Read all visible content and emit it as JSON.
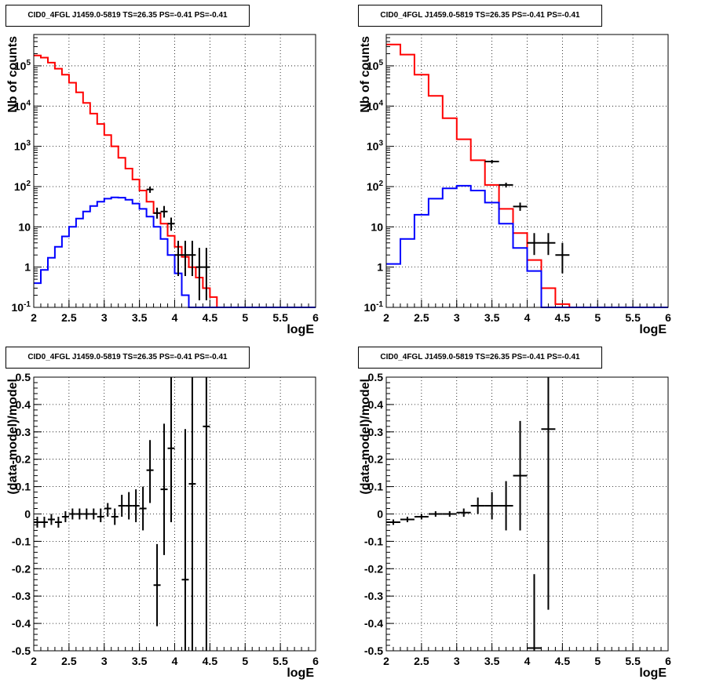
{
  "chart_data": [
    {
      "type": "line",
      "title": "CID0_4FGL J1459.0-5819 TS=26.35 PS=-0.41 PS=-0.41",
      "xlabel": "logE",
      "ylabel": "Nb of counts",
      "xlim": [
        2,
        6
      ],
      "ylim": [
        0.1,
        600000
      ],
      "yscale": "log",
      "grid": true,
      "xticks": [
        "2",
        "2.5",
        "3",
        "3.5",
        "4",
        "4.5",
        "5",
        "5.5",
        "6"
      ],
      "yticks": [
        "10^-1",
        "1",
        "10",
        "10^2",
        "10^3",
        "10^4",
        "10^5"
      ],
      "bins": 40,
      "series": [
        {
          "color": "#ff0000",
          "style": "step",
          "values": [
            180000,
            160000,
            120000,
            85000,
            60000,
            38000,
            22000,
            12000,
            6500,
            3600,
            1900,
            1000,
            520,
            280,
            150,
            80,
            42,
            22,
            12,
            6,
            3.2,
            1.8,
            1.0,
            0.55,
            0.3,
            0.18,
            0.1,
            0.1,
            0.1,
            0.1,
            0.1,
            0.1,
            0.1,
            0.1,
            0.1,
            0.1,
            0.1,
            0.1,
            0.1,
            0.1
          ]
        },
        {
          "color": "#0000ff",
          "style": "step",
          "values": [
            0.4,
            0.85,
            1.7,
            3.2,
            5.8,
            10,
            16,
            24,
            33,
            42,
            50,
            54,
            53,
            47,
            38,
            28,
            18,
            10,
            5,
            2,
            0.7,
            0.2,
            0.1,
            0.1,
            0.1,
            0.1,
            0.1,
            0.1,
            0.1,
            0.1,
            0.1,
            0.1,
            0.1,
            0.1,
            0.1,
            0.1,
            0.1,
            0.1,
            0.1,
            0.1
          ]
        }
      ],
      "points": [
        {
          "x": 3.65,
          "y": 85,
          "ylo": 70,
          "yhi": 100
        },
        {
          "x": 3.75,
          "y": 22,
          "ylo": 16,
          "yhi": 30
        },
        {
          "x": 3.85,
          "y": 24,
          "ylo": 17,
          "yhi": 33
        },
        {
          "x": 3.95,
          "y": 12,
          "ylo": 8,
          "yhi": 17
        },
        {
          "x": 4.05,
          "y": 2,
          "ylo": 0.6,
          "yhi": 4.5
        },
        {
          "x": 4.15,
          "y": 2,
          "ylo": 0.6,
          "yhi": 4.5
        },
        {
          "x": 4.25,
          "y": 2,
          "ylo": 0.6,
          "yhi": 4.5
        },
        {
          "x": 4.35,
          "y": 1,
          "ylo": 0.15,
          "yhi": 3
        },
        {
          "x": 4.45,
          "y": 1,
          "ylo": 0.15,
          "yhi": 3
        }
      ]
    },
    {
      "type": "line",
      "title": "CID0_4FGL J1459.0-5819 TS=26.35 PS=-0.41 PS=-0.41",
      "xlabel": "logE",
      "ylabel": "Nb of counts",
      "xlim": [
        2,
        6
      ],
      "ylim": [
        0.1,
        600000
      ],
      "yscale": "log",
      "grid": true,
      "xticks": [
        "2",
        "2.5",
        "3",
        "3.5",
        "4",
        "4.5",
        "5",
        "5.5",
        "6"
      ],
      "yticks": [
        "10^-1",
        "1",
        "10",
        "10^2",
        "10^3",
        "10^4",
        "10^5"
      ],
      "bins": 20,
      "series": [
        {
          "color": "#ff0000",
          "style": "step",
          "values": [
            340000,
            190000,
            60000,
            18000,
            5000,
            1500,
            450,
            110,
            28,
            7,
            1.5,
            0.3,
            0.12,
            0.1,
            0.1,
            0.1,
            0.1,
            0.1,
            0.1,
            0.1
          ]
        },
        {
          "color": "#0000ff",
          "style": "step",
          "values": [
            1.2,
            5,
            20,
            50,
            90,
            105,
            80,
            40,
            12,
            3,
            0.8,
            0.1,
            0.1,
            0.1,
            0.1,
            0.1,
            0.1,
            0.1,
            0.1,
            0.1
          ]
        }
      ],
      "points": [
        {
          "x": 3.5,
          "y": 420,
          "ylo": 380,
          "yhi": 460
        },
        {
          "x": 3.7,
          "y": 110,
          "ylo": 95,
          "yhi": 125
        },
        {
          "x": 3.9,
          "y": 32,
          "ylo": 25,
          "yhi": 40
        },
        {
          "x": 4.1,
          "y": 4,
          "ylo": 2,
          "yhi": 7
        },
        {
          "x": 4.3,
          "y": 4,
          "ylo": 2,
          "yhi": 7
        },
        {
          "x": 4.5,
          "y": 2,
          "ylo": 0.7,
          "yhi": 4
        }
      ]
    },
    {
      "type": "scatter",
      "title": "CID0_4FGL J1459.0-5819 TS=26.35 PS=-0.41 PS=-0.41",
      "xlabel": "logE",
      "ylabel": "(data-model)/model",
      "xlim": [
        2,
        6
      ],
      "ylim": [
        -0.5,
        0.5
      ],
      "grid": true,
      "xticks": [
        "2",
        "2.5",
        "3",
        "3.5",
        "4",
        "4.5",
        "5",
        "5.5",
        "6"
      ],
      "yticks": [
        "-0.5",
        "-0.4",
        "-0.3",
        "-0.2",
        "-0.1",
        "0",
        "0.1",
        "0.2",
        "0.3",
        "0.4",
        "0.5"
      ],
      "binwidth": 0.1,
      "points": [
        {
          "x": 2.05,
          "y": -0.03,
          "ylo": -0.05,
          "yhi": -0.01
        },
        {
          "x": 2.15,
          "y": -0.03,
          "ylo": -0.05,
          "yhi": -0.01
        },
        {
          "x": 2.25,
          "y": -0.02,
          "ylo": -0.04,
          "yhi": 0.0
        },
        {
          "x": 2.35,
          "y": -0.03,
          "ylo": -0.05,
          "yhi": -0.01
        },
        {
          "x": 2.45,
          "y": -0.01,
          "ylo": -0.03,
          "yhi": 0.01
        },
        {
          "x": 2.55,
          "y": 0.0,
          "ylo": -0.02,
          "yhi": 0.02
        },
        {
          "x": 2.65,
          "y": 0.0,
          "ylo": -0.02,
          "yhi": 0.02
        },
        {
          "x": 2.75,
          "y": 0.0,
          "ylo": -0.02,
          "yhi": 0.02
        },
        {
          "x": 2.85,
          "y": 0.0,
          "ylo": -0.02,
          "yhi": 0.02
        },
        {
          "x": 2.95,
          "y": -0.01,
          "ylo": -0.03,
          "yhi": 0.02
        },
        {
          "x": 3.05,
          "y": 0.02,
          "ylo": -0.01,
          "yhi": 0.04
        },
        {
          "x": 3.15,
          "y": -0.01,
          "ylo": -0.04,
          "yhi": 0.02
        },
        {
          "x": 3.25,
          "y": 0.03,
          "ylo": -0.01,
          "yhi": 0.07
        },
        {
          "x": 3.35,
          "y": 0.03,
          "ylo": -0.02,
          "yhi": 0.08
        },
        {
          "x": 3.45,
          "y": 0.03,
          "ylo": -0.03,
          "yhi": 0.09
        },
        {
          "x": 3.55,
          "y": 0.02,
          "ylo": -0.06,
          "yhi": 0.1
        },
        {
          "x": 3.65,
          "y": 0.16,
          "ylo": 0.04,
          "yhi": 0.27
        },
        {
          "x": 3.75,
          "y": -0.26,
          "ylo": -0.41,
          "yhi": -0.11
        },
        {
          "x": 3.85,
          "y": 0.09,
          "ylo": -0.15,
          "yhi": 0.33
        },
        {
          "x": 3.95,
          "y": 0.24,
          "ylo": -0.03,
          "yhi": 0.5
        },
        {
          "x": 4.15,
          "y": -0.24,
          "ylo": -0.5,
          "yhi": 0.31
        },
        {
          "x": 4.25,
          "y": 0.11,
          "ylo": -0.5,
          "yhi": 0.5
        },
        {
          "x": 4.45,
          "y": 0.32,
          "ylo": -0.5,
          "yhi": 0.5
        }
      ]
    },
    {
      "type": "scatter",
      "title": "CID0_4FGL J1459.0-5819 TS=26.35 PS=-0.41 PS=-0.41",
      "xlabel": "logE",
      "ylabel": "(data-model)/model",
      "xlim": [
        2,
        6
      ],
      "ylim": [
        -0.5,
        0.5
      ],
      "grid": true,
      "xticks": [
        "2",
        "2.5",
        "3",
        "3.5",
        "4",
        "4.5",
        "5",
        "5.5",
        "6"
      ],
      "yticks": [
        "-0.5",
        "-0.4",
        "-0.3",
        "-0.2",
        "-0.1",
        "0",
        "0.1",
        "0.2",
        "0.3",
        "0.4",
        "0.5"
      ],
      "binwidth": 0.2,
      "points": [
        {
          "x": 2.1,
          "y": -0.03,
          "ylo": -0.04,
          "yhi": -0.02
        },
        {
          "x": 2.3,
          "y": -0.02,
          "ylo": -0.03,
          "yhi": -0.01
        },
        {
          "x": 2.5,
          "y": -0.01,
          "ylo": -0.02,
          "yhi": 0.0
        },
        {
          "x": 2.7,
          "y": 0.0,
          "ylo": -0.01,
          "yhi": 0.01
        },
        {
          "x": 2.9,
          "y": 0.0,
          "ylo": -0.01,
          "yhi": 0.01
        },
        {
          "x": 3.1,
          "y": 0.005,
          "ylo": -0.01,
          "yhi": 0.02
        },
        {
          "x": 3.3,
          "y": 0.03,
          "ylo": 0.0,
          "yhi": 0.06
        },
        {
          "x": 3.5,
          "y": 0.03,
          "ylo": -0.02,
          "yhi": 0.08
        },
        {
          "x": 3.7,
          "y": 0.03,
          "ylo": -0.06,
          "yhi": 0.12
        },
        {
          "x": 3.9,
          "y": 0.14,
          "ylo": -0.06,
          "yhi": 0.34
        },
        {
          "x": 4.1,
          "y": -0.49,
          "ylo": -0.5,
          "yhi": -0.22
        },
        {
          "x": 4.3,
          "y": 0.31,
          "ylo": -0.35,
          "yhi": 0.5
        }
      ]
    }
  ]
}
